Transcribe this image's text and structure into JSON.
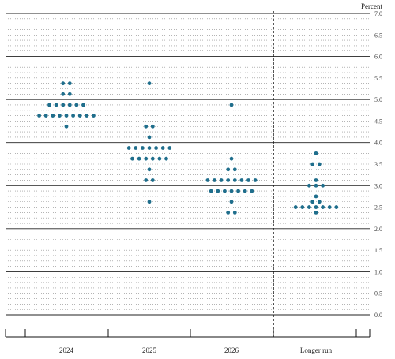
{
  "chart_data": {
    "type": "scatter",
    "y_unit_label": "Percent",
    "ylim": [
      0.0,
      7.0
    ],
    "y_ticks": [
      "0.0",
      "0.5",
      "1.0",
      "1.5",
      "2.0",
      "2.5",
      "3.0",
      "3.5",
      "4.0",
      "4.5",
      "5.0",
      "5.5",
      "6.0",
      "6.5",
      "7.0"
    ],
    "categories": [
      "2024",
      "2025",
      "2026",
      "Longer run"
    ],
    "grid": "solid lines at whole percents, dotted lines at 0.125 steps",
    "dot_color": "#1f6e8c",
    "rows": [
      {
        "category": "2024",
        "points": [
          {
            "y": 5.375,
            "count": 2
          },
          {
            "y": 5.125,
            "count": 2
          },
          {
            "y": 4.875,
            "count": 6
          },
          {
            "y": 4.625,
            "count": 9
          },
          {
            "y": 4.375,
            "count": 1
          }
        ]
      },
      {
        "category": "2025",
        "points": [
          {
            "y": 5.375,
            "count": 1
          },
          {
            "y": 4.375,
            "count": 2
          },
          {
            "y": 4.125,
            "count": 1
          },
          {
            "y": 3.875,
            "count": 7
          },
          {
            "y": 3.625,
            "count": 6
          },
          {
            "y": 3.375,
            "count": 1
          },
          {
            "y": 3.125,
            "count": 2
          },
          {
            "y": 2.625,
            "count": 1
          }
        ]
      },
      {
        "category": "2026",
        "points": [
          {
            "y": 4.875,
            "count": 1
          },
          {
            "y": 3.625,
            "count": 1
          },
          {
            "y": 3.375,
            "count": 2
          },
          {
            "y": 3.125,
            "count": 8
          },
          {
            "y": 2.875,
            "count": 7
          },
          {
            "y": 2.625,
            "count": 1
          },
          {
            "y": 2.375,
            "count": 2
          }
        ]
      },
      {
        "category": "Longer run",
        "points": [
          {
            "y": 3.75,
            "count": 1
          },
          {
            "y": 3.5,
            "count": 2
          },
          {
            "y": 3.125,
            "count": 1
          },
          {
            "y": 3.0,
            "count": 3
          },
          {
            "y": 2.75,
            "count": 1
          },
          {
            "y": 2.625,
            "count": 2
          },
          {
            "y": 2.5,
            "count": 7
          },
          {
            "y": 2.375,
            "count": 1
          }
        ]
      }
    ]
  }
}
